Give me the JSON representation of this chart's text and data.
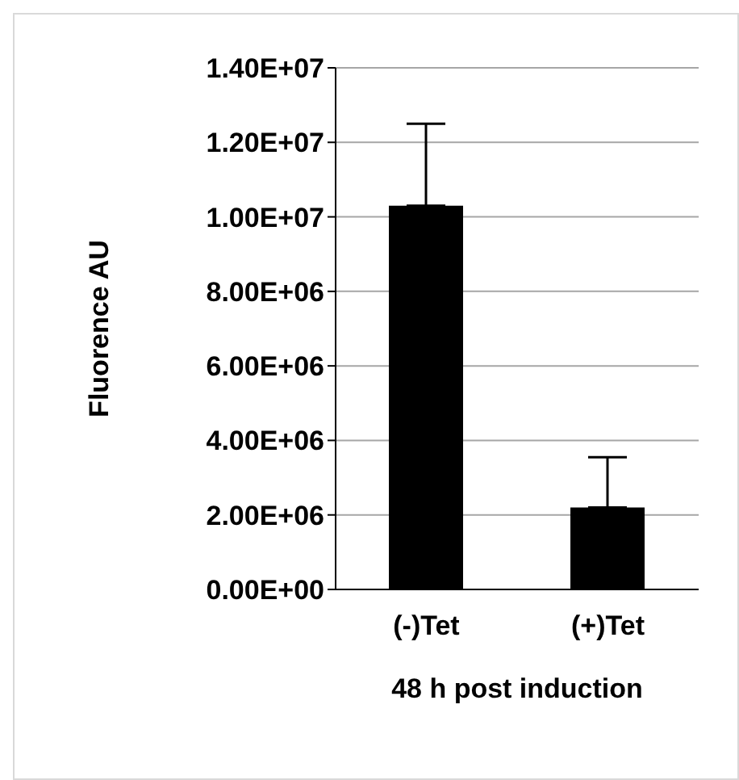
{
  "chart_data": {
    "type": "bar",
    "xlabel": "48 h post induction",
    "ylabel": "Fluorence AU",
    "categories": [
      "(-)Tet",
      "(+)Tet"
    ],
    "values": [
      10300000,
      2200000
    ],
    "color": "#000000",
    "errors": [
      [
        10300000,
        12500000
      ],
      [
        2200000,
        3550000
      ]
    ],
    "ylim": [
      0,
      14000000
    ],
    "yticks": [
      {
        "value": 0,
        "label": "0.00E+00"
      },
      {
        "value": 2000000,
        "label": "2.00E+06"
      },
      {
        "value": 4000000,
        "label": "4.00E+06"
      },
      {
        "value": 6000000,
        "label": "6.00E+06"
      },
      {
        "value": 8000000,
        "label": "8.00E+06"
      },
      {
        "value": 10000000,
        "label": "1.00E+07"
      },
      {
        "value": 12000000,
        "label": "1.20E+07"
      },
      {
        "value": 14000000,
        "label": "1.40E+07"
      }
    ],
    "grid": "y",
    "legend": false
  }
}
